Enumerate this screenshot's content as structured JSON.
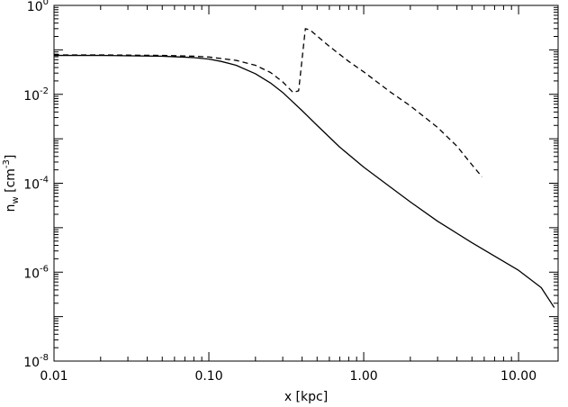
{
  "chart_data": {
    "type": "line",
    "xlabel": "x [kpc]",
    "ylabel": {
      "base": "n",
      "sub": "w",
      "unit_open": " [cm",
      "unit_exp": "-3",
      "unit_close": "]"
    },
    "xscale": "log",
    "yscale": "log",
    "xlim": [
      0.01,
      18
    ],
    "ylim": [
      1e-08,
      1
    ],
    "x_ticks": [
      {
        "value": 0.01,
        "label": "0.01"
      },
      {
        "value": 0.1,
        "label": "0.10"
      },
      {
        "value": 1,
        "label": "1.00"
      },
      {
        "value": 10,
        "label": "10.00"
      }
    ],
    "y_ticks": [
      {
        "value": 1,
        "base": "10",
        "exp": "0"
      },
      {
        "value": 0.01,
        "base": "10",
        "exp": "-2"
      },
      {
        "value": 0.0001,
        "base": "10",
        "exp": "-4"
      },
      {
        "value": 1e-06,
        "base": "10",
        "exp": "-6"
      },
      {
        "value": 1e-08,
        "base": "10",
        "exp": "-8"
      }
    ],
    "grid": false,
    "legend": "none",
    "series": [
      {
        "style": "solid",
        "x": [
          0.01,
          0.02,
          0.05,
          0.08,
          0.1,
          0.12,
          0.15,
          0.2,
          0.25,
          0.3,
          0.4,
          0.5,
          0.7,
          1.0,
          1.5,
          2.0,
          3.0,
          5.0,
          7.0,
          10.0,
          14.0,
          17.0
        ],
        "y": [
          0.075,
          0.075,
          0.072,
          0.067,
          0.062,
          0.055,
          0.045,
          0.029,
          0.018,
          0.011,
          0.0043,
          0.002,
          0.00065,
          0.00023,
          8e-05,
          3.8e-05,
          1.4e-05,
          4.6e-06,
          2.3e-06,
          1.1e-06,
          4.5e-07,
          1.6e-07
        ]
      },
      {
        "style": "dashed",
        "x": [
          0.01,
          0.02,
          0.05,
          0.08,
          0.1,
          0.15,
          0.2,
          0.25,
          0.3,
          0.35,
          0.38,
          0.42,
          0.45,
          0.6,
          0.8,
          1.0,
          1.5,
          2.0,
          3.0,
          4.0,
          5.0,
          5.8
        ],
        "y": [
          0.077,
          0.077,
          0.075,
          0.072,
          0.069,
          0.058,
          0.045,
          0.031,
          0.019,
          0.011,
          0.012,
          0.3,
          0.28,
          0.12,
          0.055,
          0.032,
          0.011,
          0.0055,
          0.0018,
          0.00068,
          0.00026,
          0.00014
        ]
      }
    ]
  }
}
